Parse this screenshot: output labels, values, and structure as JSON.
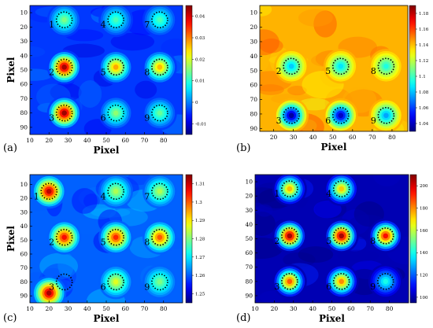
{
  "chart_data": [
    {
      "type": "heatmap",
      "panel_label": "(a)",
      "xlabel": "Pixel",
      "ylabel": "Pixel",
      "x_ticks": [
        10,
        20,
        30,
        40,
        50,
        60,
        70,
        80
      ],
      "y_ticks": [
        10,
        20,
        30,
        40,
        50,
        60,
        70,
        80,
        90
      ],
      "xlim": [
        10,
        90
      ],
      "ylim": [
        5,
        95
      ],
      "colormap": "jet",
      "colorbar_ticks": [
        "-0.01",
        "0",
        "0.01",
        "0.02",
        "0.03",
        "0.04"
      ],
      "colorbar_range": [
        -0.015,
        0.045
      ],
      "background_level": 0.18,
      "blobs": [
        {
          "x": 28,
          "y": 15,
          "level": 0.5
        },
        {
          "x": 55,
          "y": 15,
          "level": 0.45
        },
        {
          "x": 78,
          "y": 15,
          "level": 0.45
        },
        {
          "x": 28,
          "y": 48,
          "level": 0.97
        },
        {
          "x": 55,
          "y": 48,
          "level": 0.72
        },
        {
          "x": 78,
          "y": 48,
          "level": 0.7
        },
        {
          "x": 28,
          "y": 80,
          "level": 0.98
        },
        {
          "x": 55,
          "y": 80,
          "level": 0.52
        },
        {
          "x": 78,
          "y": 80,
          "level": 0.48
        }
      ],
      "markers": [
        {
          "label": "1",
          "x": 28,
          "y": 15
        },
        {
          "label": "4",
          "x": 55,
          "y": 15
        },
        {
          "label": "7",
          "x": 78,
          "y": 15
        },
        {
          "label": "2",
          "x": 28,
          "y": 48
        },
        {
          "label": "5",
          "x": 55,
          "y": 48
        },
        {
          "label": "8",
          "x": 78,
          "y": 48
        },
        {
          "label": "3",
          "x": 28,
          "y": 80
        },
        {
          "label": "6",
          "x": 55,
          "y": 80
        },
        {
          "label": "9",
          "x": 78,
          "y": 80
        }
      ]
    },
    {
      "type": "heatmap",
      "panel_label": "(b)",
      "xlabel": "Pixel",
      "ylabel": "",
      "x_ticks": [
        20,
        30,
        40,
        50,
        60,
        70,
        80
      ],
      "y_ticks": [
        10,
        20,
        30,
        40,
        50,
        60,
        70,
        80,
        90
      ],
      "xlim": [
        13,
        88
      ],
      "ylim": [
        5,
        92
      ],
      "colormap": "jet",
      "colorbar_ticks": [
        "1.04",
        "1.06",
        "1.08",
        "1.1",
        "1.12",
        "1.14",
        "1.16",
        "1.18"
      ],
      "colorbar_range": [
        1.03,
        1.19
      ],
      "background_level": 0.7,
      "blobs": [
        {
          "x": 29,
          "y": 47,
          "level": 0.32
        },
        {
          "x": 54,
          "y": 47,
          "level": 0.35
        },
        {
          "x": 77,
          "y": 47,
          "level": 0.4
        },
        {
          "x": 29,
          "y": 81,
          "level": 0.02
        },
        {
          "x": 54,
          "y": 81,
          "level": 0.06
        },
        {
          "x": 77,
          "y": 81,
          "level": 0.28
        }
      ],
      "markers": [
        {
          "label": "2",
          "x": 29,
          "y": 47
        },
        {
          "label": "5",
          "x": 54,
          "y": 47
        },
        {
          "label": "8",
          "x": 77,
          "y": 47
        },
        {
          "label": "3",
          "x": 29,
          "y": 81
        },
        {
          "label": "6",
          "x": 54,
          "y": 81
        },
        {
          "label": "9",
          "x": 77,
          "y": 81
        }
      ]
    },
    {
      "type": "heatmap",
      "panel_label": "(c)",
      "xlabel": "Pixel",
      "ylabel": "Pixel",
      "x_ticks": [
        10,
        20,
        30,
        40,
        50,
        60,
        70,
        80
      ],
      "y_ticks": [
        10,
        20,
        30,
        40,
        50,
        60,
        70,
        80,
        90
      ],
      "xlim": [
        10,
        90
      ],
      "ylim": [
        3,
        95
      ],
      "colormap": "jet",
      "colorbar_ticks": [
        "1.25",
        "1.26",
        "1.27",
        "1.28",
        "1.29",
        "1.3",
        "1.31"
      ],
      "colorbar_range": [
        1.245,
        1.315
      ],
      "background_level": 0.22,
      "blobs": [
        {
          "x": 20,
          "y": 15,
          "level": 0.95
        },
        {
          "x": 55,
          "y": 15,
          "level": 0.55
        },
        {
          "x": 78,
          "y": 15,
          "level": 0.55
        },
        {
          "x": 28,
          "y": 48,
          "level": 0.88
        },
        {
          "x": 55,
          "y": 48,
          "level": 0.85
        },
        {
          "x": 78,
          "y": 48,
          "level": 0.8
        },
        {
          "x": 20,
          "y": 88,
          "level": 0.97
        },
        {
          "x": 55,
          "y": 80,
          "level": 0.6
        },
        {
          "x": 78,
          "y": 80,
          "level": 0.5
        }
      ],
      "markers": [
        {
          "label": "1",
          "x": 20,
          "y": 15
        },
        {
          "label": "4",
          "x": 55,
          "y": 15
        },
        {
          "label": "7",
          "x": 78,
          "y": 15
        },
        {
          "label": "2",
          "x": 28,
          "y": 48
        },
        {
          "label": "5",
          "x": 55,
          "y": 48
        },
        {
          "label": "8",
          "x": 78,
          "y": 48
        },
        {
          "label": "3",
          "x": 28,
          "y": 80
        },
        {
          "label": "6",
          "x": 55,
          "y": 80
        },
        {
          "label": "9",
          "x": 78,
          "y": 80
        }
      ]
    },
    {
      "type": "heatmap",
      "panel_label": "(d)",
      "xlabel": "Pixel",
      "ylabel": "",
      "x_ticks": [
        10,
        20,
        30,
        40,
        50,
        60,
        70,
        80
      ],
      "y_ticks": [
        10,
        20,
        30,
        40,
        50,
        60,
        70,
        80,
        90
      ],
      "xlim": [
        10,
        90
      ],
      "ylim": [
        5,
        95
      ],
      "colormap": "jet",
      "colorbar_ticks": [
        "100",
        "120",
        "140",
        "160",
        "180",
        "200"
      ],
      "colorbar_range": [
        95,
        210
      ],
      "background_level": 0.05,
      "blobs": [
        {
          "x": 28,
          "y": 48,
          "level": 0.97
        },
        {
          "x": 55,
          "y": 48,
          "level": 0.97
        },
        {
          "x": 78,
          "y": 48,
          "level": 0.88
        },
        {
          "x": 28,
          "y": 15,
          "level": 0.7
        },
        {
          "x": 55,
          "y": 15,
          "level": 0.68
        },
        {
          "x": 28,
          "y": 80,
          "level": 0.8
        },
        {
          "x": 55,
          "y": 80,
          "level": 0.75
        },
        {
          "x": 78,
          "y": 80,
          "level": 0.4
        }
      ],
      "markers": [
        {
          "label": "1",
          "x": 28,
          "y": 15
        },
        {
          "label": "4",
          "x": 55,
          "y": 15
        },
        {
          "label": "2",
          "x": 28,
          "y": 48
        },
        {
          "label": "5",
          "x": 55,
          "y": 48
        },
        {
          "label": "8",
          "x": 78,
          "y": 48
        },
        {
          "label": "3",
          "x": 28,
          "y": 80
        },
        {
          "label": "6",
          "x": 55,
          "y": 80
        },
        {
          "label": "9",
          "x": 78,
          "y": 80
        }
      ]
    }
  ]
}
